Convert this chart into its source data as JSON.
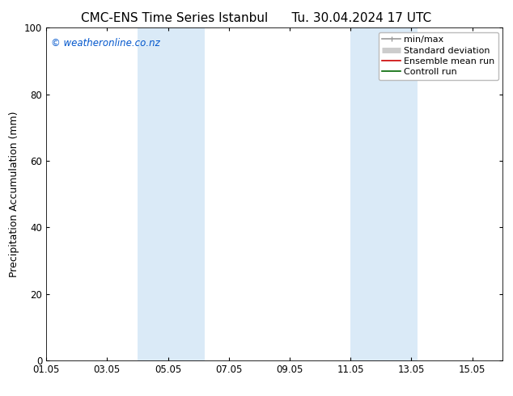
{
  "title_left": "CMC-ENS Time Series Istanbul",
  "title_right": "Tu. 30.04.2024 17 UTC",
  "ylabel": "Precipitation Accumulation (mm)",
  "ylim": [
    0,
    100
  ],
  "yticks": [
    0,
    20,
    40,
    60,
    80,
    100
  ],
  "xlim": [
    1,
    16
  ],
  "xtick_labels": [
    "01.05",
    "03.05",
    "05.05",
    "07.05",
    "09.05",
    "11.05",
    "13.05",
    "15.05"
  ],
  "xtick_positions": [
    1,
    3,
    5,
    7,
    9,
    11,
    13,
    15
  ],
  "shaded_regions": [
    {
      "xstart_day": 4.0,
      "xend_day": 6.2
    },
    {
      "xstart_day": 11.0,
      "xend_day": 13.2
    }
  ],
  "shade_color": "#daeaf7",
  "watermark_text": "© weatheronline.co.nz",
  "watermark_color": "#0055cc",
  "legend_items": [
    {
      "label": "min/max",
      "color": "#999999",
      "lw": 1.2,
      "style": "line_with_cap"
    },
    {
      "label": "Standard deviation",
      "color": "#cccccc",
      "lw": 5,
      "style": "thick"
    },
    {
      "label": "Ensemble mean run",
      "color": "#cc0000",
      "lw": 1.2,
      "style": "line"
    },
    {
      "label": "Controll run",
      "color": "#006600",
      "lw": 1.2,
      "style": "line"
    }
  ],
  "bg_color": "#ffffff",
  "plot_bg_color": "#ffffff",
  "title_fontsize": 11,
  "label_fontsize": 9,
  "tick_fontsize": 8.5,
  "legend_fontsize": 8
}
